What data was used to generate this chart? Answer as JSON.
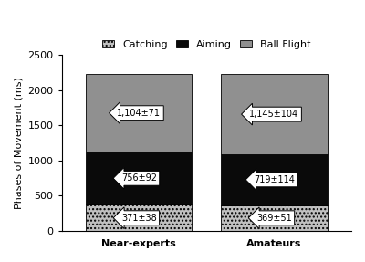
{
  "categories": [
    "Near-experts",
    "Amateurs"
  ],
  "catching": [
    371,
    369
  ],
  "aiming": [
    756,
    719
  ],
  "ball_flight": [
    1104,
    1145
  ],
  "catching_labels": [
    "371±38",
    "369±51"
  ],
  "aiming_labels": [
    "756±92",
    "719±114"
  ],
  "ball_flight_labels": [
    "1,104±71",
    "1,145±104"
  ],
  "catching_color": "#c0c0c0",
  "aiming_color": "#0a0a0a",
  "ball_flight_color": "#909090",
  "catching_hatch": "....",
  "ylabel": "Phases of Movement (ms)",
  "ylim": [
    0,
    2500
  ],
  "yticks": [
    0,
    500,
    1000,
    1500,
    2000,
    2500
  ],
  "legend_labels": [
    "Catching",
    "Aiming",
    "Ball Flight"
  ],
  "bar_width": 0.55,
  "background_color": "#ffffff",
  "x_positions": [
    0.3,
    1.0
  ]
}
